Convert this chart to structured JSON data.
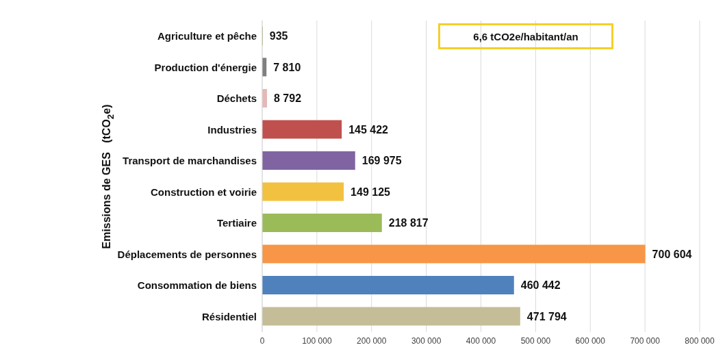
{
  "chart_data": {
    "type": "bar",
    "orientation": "horizontal",
    "ylabel": "Emissions de GES   (tCO$_{2}$e)",
    "categories": [
      "Agriculture et pêche",
      "Production d'énergie",
      "Déchets",
      "Industries",
      "Transport de marchandises",
      "Construction et voirie",
      "Tertiaire",
      "Déplacements de personnes",
      "Consommation de biens",
      "Résidentiel"
    ],
    "values": [
      935,
      7810,
      8792,
      145422,
      169975,
      149125,
      218817,
      700604,
      460442,
      471794
    ],
    "colors": [
      "#77933c",
      "#7f7f7f",
      "#e6b8b7",
      "#c0504d",
      "#8064a2",
      "#f2c140",
      "#9bbb59",
      "#f79646",
      "#4f81bd",
      "#c4bd97"
    ],
    "value_labels": [
      "935",
      "7 810",
      "8 792",
      "145 422",
      "169 975",
      "149 125",
      "218 817",
      "700 604",
      "460 442",
      "471 794"
    ],
    "xlim": [
      0,
      800000
    ],
    "xticks": [
      0,
      {
        "value": 100000,
        "label": "100 000"
      },
      {
        "value": 200000,
        "label": "200 000"
      },
      {
        "value": 300000,
        "label": "300 000"
      },
      {
        "value": 400000,
        "label": "400 000"
      },
      {
        "value": 500000,
        "label": "500 000"
      },
      {
        "value": 600000,
        "label": "600 000"
      },
      {
        "value": 700000,
        "label": "700 000"
      },
      {
        "value": 800000,
        "label": "800 000"
      }
    ],
    "grid": "x",
    "annotations": [
      "6,6 tCO2e/habitant/an"
    ]
  }
}
